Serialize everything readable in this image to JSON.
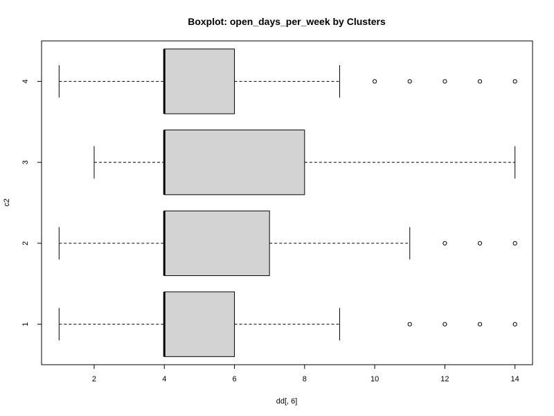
{
  "chart_data": {
    "type": "boxplot",
    "orientation": "horizontal",
    "title": "Boxplot: open_days_per_week by Clusters",
    "xlabel": "dd[, 6]",
    "ylabel": "c2",
    "xlim": [
      0.5,
      14.5
    ],
    "x_ticks": [
      2,
      4,
      6,
      8,
      10,
      12,
      14
    ],
    "grid": false,
    "box_fill": "#d3d3d3",
    "groups": [
      {
        "label": "1",
        "whisker_low": 1,
        "q1": 4,
        "median": 4,
        "q3": 6,
        "whisker_high": 9,
        "outliers": [
          11,
          12,
          13,
          14
        ]
      },
      {
        "label": "2",
        "whisker_low": 1,
        "q1": 4,
        "median": 4,
        "q3": 7,
        "whisker_high": 11,
        "outliers": [
          12,
          13,
          14
        ]
      },
      {
        "label": "3",
        "whisker_low": 2,
        "q1": 4,
        "median": 4,
        "q3": 8,
        "whisker_high": 14,
        "outliers": []
      },
      {
        "label": "4",
        "whisker_low": 1,
        "q1": 4,
        "median": 4,
        "q3": 6,
        "whisker_high": 9,
        "outliers": [
          10,
          11,
          12,
          13,
          14
        ]
      }
    ]
  }
}
